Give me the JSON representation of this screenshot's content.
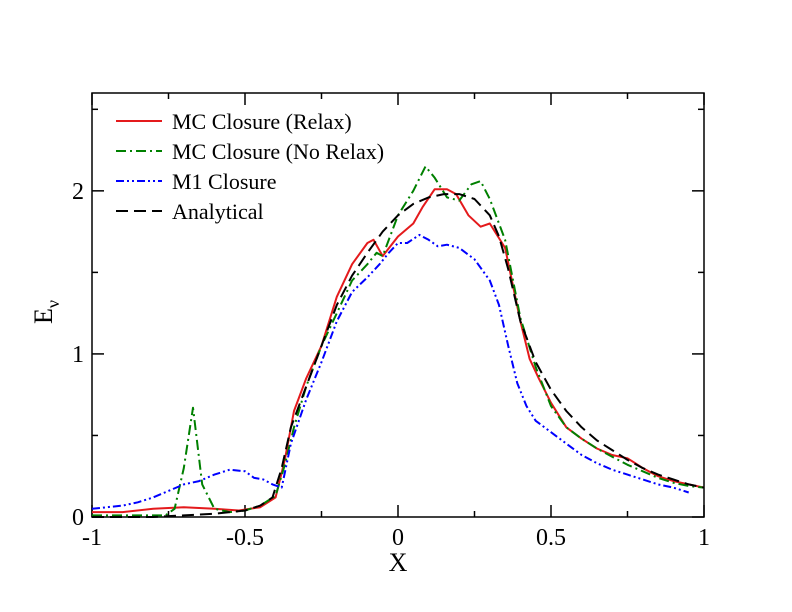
{
  "chart_data": {
    "type": "line",
    "title": "",
    "xlabel": "X",
    "ylabel": "E",
    "ylabel_subscript": "ν",
    "xlim": [
      -1,
      1
    ],
    "ylim": [
      0,
      2.6
    ],
    "xticks": [
      -1,
      -0.5,
      0,
      0.5,
      1
    ],
    "xtick_labels": [
      "-1",
      "-0.5",
      "0",
      "0.5",
      "1"
    ],
    "yticks": [
      0,
      1,
      2
    ],
    "ytick_labels": [
      "0",
      "1",
      "2"
    ],
    "legend_position": "top-left",
    "series": [
      {
        "name": "MC Closure (Relax)",
        "color": "#e41a1c",
        "dash": "solid",
        "x": [
          -1,
          -0.9,
          -0.8,
          -0.7,
          -0.6,
          -0.52,
          -0.45,
          -0.4,
          -0.37,
          -0.34,
          -0.3,
          -0.25,
          -0.2,
          -0.15,
          -0.1,
          -0.08,
          -0.05,
          0,
          0.05,
          0.08,
          0.12,
          0.16,
          0.19,
          0.23,
          0.27,
          0.3,
          0.35,
          0.4,
          0.43,
          0.46,
          0.5,
          0.55,
          0.6,
          0.65,
          0.7,
          0.75,
          0.8,
          0.85,
          0.9,
          0.95,
          1
        ],
        "y": [
          0.03,
          0.03,
          0.05,
          0.06,
          0.05,
          0.04,
          0.06,
          0.12,
          0.35,
          0.65,
          0.85,
          1.05,
          1.35,
          1.55,
          1.68,
          1.7,
          1.6,
          1.72,
          1.8,
          1.9,
          2.01,
          2.01,
          1.98,
          1.85,
          1.78,
          1.8,
          1.65,
          1.2,
          0.97,
          0.85,
          0.7,
          0.55,
          0.48,
          0.42,
          0.38,
          0.36,
          0.3,
          0.25,
          0.22,
          0.2,
          0.18
        ]
      },
      {
        "name": "MC Closure (No Relax)",
        "color": "#008000",
        "dash": "dashdot",
        "x": [
          -1,
          -0.9,
          -0.8,
          -0.76,
          -0.73,
          -0.7,
          -0.67,
          -0.64,
          -0.6,
          -0.55,
          -0.5,
          -0.45,
          -0.4,
          -0.37,
          -0.34,
          -0.3,
          -0.25,
          -0.2,
          -0.15,
          -0.1,
          -0.07,
          -0.05,
          0,
          0.05,
          0.09,
          0.12,
          0.16,
          0.2,
          0.24,
          0.27,
          0.3,
          0.35,
          0.4,
          0.45,
          0.5,
          0.55,
          0.6,
          0.65,
          0.7,
          0.75,
          0.8,
          0.85,
          0.9,
          0.95,
          1
        ],
        "y": [
          0.01,
          0.01,
          0.01,
          0.01,
          0.05,
          0.3,
          0.67,
          0.2,
          0.05,
          0.03,
          0.04,
          0.07,
          0.13,
          0.32,
          0.55,
          0.8,
          1.05,
          1.25,
          1.45,
          1.55,
          1.62,
          1.6,
          1.85,
          2.0,
          2.15,
          2.08,
          1.96,
          1.94,
          2.04,
          2.06,
          1.95,
          1.7,
          1.22,
          0.92,
          0.68,
          0.55,
          0.48,
          0.42,
          0.37,
          0.32,
          0.28,
          0.24,
          0.21,
          0.19,
          0.18
        ]
      },
      {
        "name": "M1 Closure",
        "color": "#0000ff",
        "dash": "dashdotdot",
        "x": [
          -1,
          -0.95,
          -0.9,
          -0.85,
          -0.8,
          -0.75,
          -0.7,
          -0.65,
          -0.6,
          -0.55,
          -0.5,
          -0.47,
          -0.44,
          -0.41,
          -0.38,
          -0.35,
          -0.3,
          -0.25,
          -0.2,
          -0.15,
          -0.1,
          -0.06,
          -0.03,
          0,
          0.03,
          0.07,
          0.1,
          0.13,
          0.16,
          0.2,
          0.25,
          0.3,
          0.33,
          0.36,
          0.39,
          0.42,
          0.45,
          0.5,
          0.55,
          0.6,
          0.65,
          0.7,
          0.75,
          0.8,
          0.85,
          0.9,
          0.95
        ],
        "y": [
          0.05,
          0.06,
          0.07,
          0.09,
          0.12,
          0.16,
          0.2,
          0.22,
          0.26,
          0.29,
          0.28,
          0.24,
          0.23,
          0.2,
          0.18,
          0.45,
          0.72,
          0.95,
          1.2,
          1.38,
          1.47,
          1.55,
          1.62,
          1.68,
          1.68,
          1.73,
          1.7,
          1.66,
          1.67,
          1.65,
          1.58,
          1.45,
          1.3,
          1.05,
          0.82,
          0.68,
          0.59,
          0.52,
          0.45,
          0.38,
          0.33,
          0.29,
          0.26,
          0.23,
          0.2,
          0.18,
          0.15
        ]
      },
      {
        "name": "Analytical",
        "color": "#000000",
        "dash": "dashed",
        "x": [
          -1,
          -0.9,
          -0.8,
          -0.7,
          -0.6,
          -0.5,
          -0.45,
          -0.41,
          -0.38,
          -0.35,
          -0.3,
          -0.25,
          -0.2,
          -0.15,
          -0.1,
          -0.05,
          0,
          0.05,
          0.1,
          0.15,
          0.2,
          0.25,
          0.3,
          0.33,
          0.36,
          0.4,
          0.45,
          0.5,
          0.55,
          0.6,
          0.65,
          0.7,
          0.75,
          0.8,
          0.85,
          0.9,
          0.95,
          1
        ],
        "y": [
          0.0,
          0.0,
          0.0,
          0.01,
          0.02,
          0.04,
          0.07,
          0.12,
          0.3,
          0.55,
          0.8,
          1.05,
          1.3,
          1.48,
          1.62,
          1.75,
          1.85,
          1.92,
          1.96,
          1.98,
          1.98,
          1.95,
          1.85,
          1.72,
          1.52,
          1.2,
          0.95,
          0.78,
          0.65,
          0.55,
          0.47,
          0.41,
          0.35,
          0.3,
          0.26,
          0.23,
          0.2,
          0.18
        ]
      }
    ]
  }
}
